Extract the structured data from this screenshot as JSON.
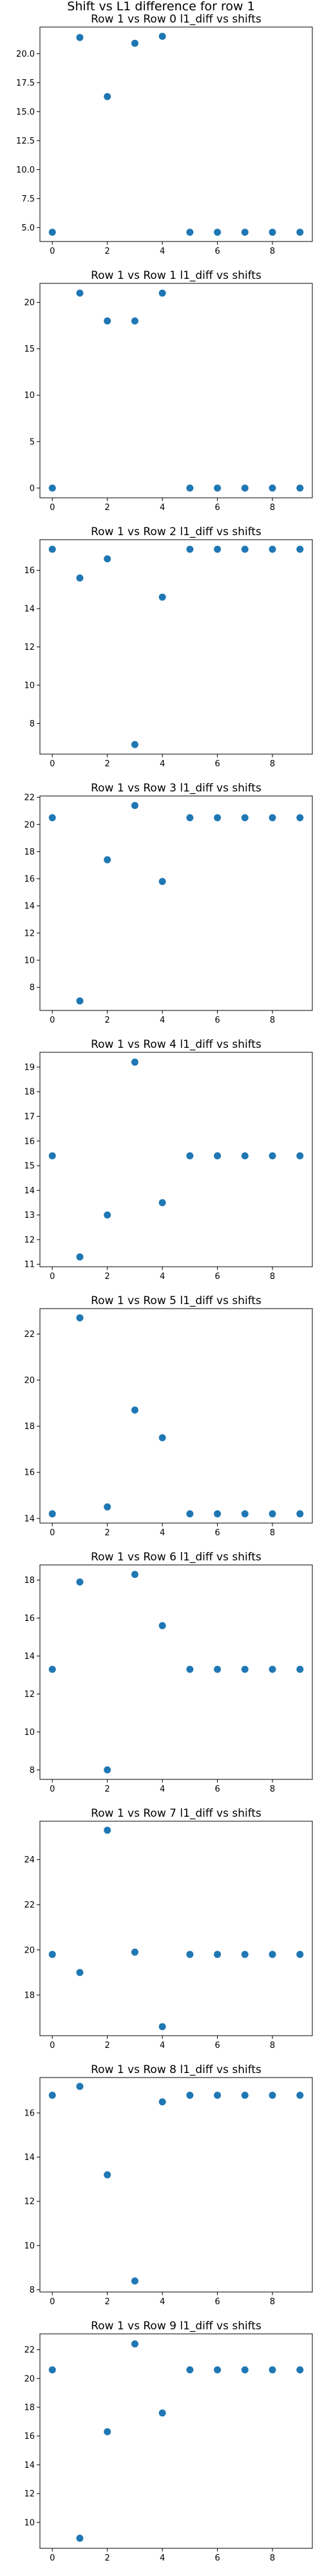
{
  "figure": {
    "suptitle": "Shift vs L1 difference for row 1",
    "marker_color": "#1f77b4"
  },
  "chart_data": [
    {
      "type": "scatter",
      "title": "Row 1 vs Row 0 l1_diff vs shifts",
      "xlabel": "",
      "ylabel": "",
      "x": [
        0,
        1,
        2,
        3,
        4,
        5,
        6,
        7,
        8,
        9
      ],
      "y": [
        4.6,
        21.4,
        16.3,
        20.9,
        21.5,
        4.6,
        4.6,
        4.6,
        4.6,
        4.6
      ],
      "xlim": [
        -0.45,
        9.45
      ],
      "ylim": [
        3.8,
        22.3
      ],
      "xticks": [
        0,
        2,
        4,
        6,
        8
      ],
      "yticks": [
        5.0,
        7.5,
        10.0,
        12.5,
        15.0,
        17.5,
        20.0
      ],
      "ytick_labels": [
        "5.0",
        "7.5",
        "10.0",
        "12.5",
        "15.0",
        "17.5",
        "20.0"
      ],
      "grid": false
    },
    {
      "type": "scatter",
      "title": "Row 1 vs Row 1 l1_diff vs shifts",
      "xlabel": "",
      "ylabel": "",
      "x": [
        0,
        1,
        2,
        3,
        4,
        5,
        6,
        7,
        8,
        9
      ],
      "y": [
        0,
        21,
        18,
        18,
        21,
        0,
        0,
        0,
        0,
        0
      ],
      "xlim": [
        -0.45,
        9.45
      ],
      "ylim": [
        -1.05,
        22.05
      ],
      "xticks": [
        0,
        2,
        4,
        6,
        8
      ],
      "yticks": [
        0,
        5,
        10,
        15,
        20
      ],
      "ytick_labels": [
        "0",
        "5",
        "10",
        "15",
        "20"
      ],
      "grid": false
    },
    {
      "type": "scatter",
      "title": "Row 1 vs Row 2 l1_diff vs shifts",
      "xlabel": "",
      "ylabel": "",
      "x": [
        0,
        1,
        2,
        3,
        4,
        5,
        6,
        7,
        8,
        9
      ],
      "y": [
        17.1,
        15.6,
        16.6,
        6.9,
        14.6,
        17.1,
        17.1,
        17.1,
        17.1,
        17.1
      ],
      "xlim": [
        -0.45,
        9.45
      ],
      "ylim": [
        6.4,
        17.6
      ],
      "xticks": [
        0,
        2,
        4,
        6,
        8
      ],
      "yticks": [
        8,
        10,
        12,
        14,
        16
      ],
      "ytick_labels": [
        "8",
        "10",
        "12",
        "14",
        "16"
      ],
      "grid": false
    },
    {
      "type": "scatter",
      "title": "Row 1 vs Row 3 l1_diff vs shifts",
      "xlabel": "",
      "ylabel": "",
      "x": [
        0,
        1,
        2,
        3,
        4,
        5,
        6,
        7,
        8,
        9
      ],
      "y": [
        20.5,
        7.0,
        17.4,
        21.4,
        15.8,
        20.5,
        20.5,
        20.5,
        20.5,
        20.5
      ],
      "xlim": [
        -0.45,
        9.45
      ],
      "ylim": [
        6.3,
        22.1
      ],
      "xticks": [
        0,
        2,
        4,
        6,
        8
      ],
      "yticks": [
        8,
        10,
        12,
        14,
        16,
        18,
        20,
        22
      ],
      "ytick_labels": [
        "8",
        "10",
        "12",
        "14",
        "16",
        "18",
        "20",
        "22"
      ],
      "grid": false
    },
    {
      "type": "scatter",
      "title": "Row 1 vs Row 4 l1_diff vs shifts",
      "xlabel": "",
      "ylabel": "",
      "x": [
        0,
        1,
        2,
        3,
        4,
        5,
        6,
        7,
        8,
        9
      ],
      "y": [
        15.4,
        11.3,
        13.0,
        19.2,
        13.5,
        15.4,
        15.4,
        15.4,
        15.4,
        15.4
      ],
      "xlim": [
        -0.45,
        9.45
      ],
      "ylim": [
        10.9,
        19.6
      ],
      "xticks": [
        0,
        2,
        4,
        6,
        8
      ],
      "yticks": [
        11,
        12,
        13,
        14,
        15,
        16,
        17,
        18,
        19
      ],
      "ytick_labels": [
        "11",
        "12",
        "13",
        "14",
        "15",
        "16",
        "17",
        "18",
        "19"
      ],
      "grid": false
    },
    {
      "type": "scatter",
      "title": "Row 1 vs Row 5 l1_diff vs shifts",
      "xlabel": "",
      "ylabel": "",
      "x": [
        0,
        1,
        2,
        3,
        4,
        5,
        6,
        7,
        8,
        9
      ],
      "y": [
        14.2,
        22.7,
        14.5,
        18.7,
        17.5,
        14.2,
        14.2,
        14.2,
        14.2,
        14.2
      ],
      "xlim": [
        -0.45,
        9.45
      ],
      "ylim": [
        13.8,
        23.1
      ],
      "xticks": [
        0,
        2,
        4,
        6,
        8
      ],
      "yticks": [
        14,
        16,
        18,
        20,
        22
      ],
      "ytick_labels": [
        "14",
        "16",
        "18",
        "20",
        "22"
      ],
      "grid": false
    },
    {
      "type": "scatter",
      "title": "Row 1 vs Row 6 l1_diff vs shifts",
      "xlabel": "",
      "ylabel": "",
      "x": [
        0,
        1,
        2,
        3,
        4,
        5,
        6,
        7,
        8,
        9
      ],
      "y": [
        13.3,
        17.9,
        8.0,
        18.3,
        15.6,
        13.3,
        13.3,
        13.3,
        13.3,
        13.3
      ],
      "xlim": [
        -0.45,
        9.45
      ],
      "ylim": [
        7.5,
        18.8
      ],
      "xticks": [
        0,
        2,
        4,
        6,
        8
      ],
      "yticks": [
        8,
        10,
        12,
        14,
        16,
        18
      ],
      "ytick_labels": [
        "8",
        "10",
        "12",
        "14",
        "16",
        "18"
      ],
      "grid": false
    },
    {
      "type": "scatter",
      "title": "Row 1 vs Row 7 l1_diff vs shifts",
      "xlabel": "",
      "ylabel": "",
      "x": [
        0,
        1,
        2,
        3,
        4,
        5,
        6,
        7,
        8,
        9
      ],
      "y": [
        19.8,
        19.0,
        25.3,
        19.9,
        16.6,
        19.8,
        19.8,
        19.8,
        19.8,
        19.8
      ],
      "xlim": [
        -0.45,
        9.45
      ],
      "ylim": [
        16.2,
        25.7
      ],
      "xticks": [
        0,
        2,
        4,
        6,
        8
      ],
      "yticks": [
        18,
        20,
        22,
        24
      ],
      "ytick_labels": [
        "18",
        "20",
        "22",
        "24"
      ],
      "grid": false
    },
    {
      "type": "scatter",
      "title": "Row 1 vs Row 8 l1_diff vs shifts",
      "xlabel": "",
      "ylabel": "",
      "x": [
        0,
        1,
        2,
        3,
        4,
        5,
        6,
        7,
        8,
        9
      ],
      "y": [
        16.8,
        17.2,
        13.2,
        8.4,
        16.5,
        16.8,
        16.8,
        16.8,
        16.8,
        16.8
      ],
      "xlim": [
        -0.45,
        9.45
      ],
      "ylim": [
        7.9,
        17.6
      ],
      "xticks": [
        0,
        2,
        4,
        6,
        8
      ],
      "yticks": [
        8,
        10,
        12,
        14,
        16
      ],
      "ytick_labels": [
        "8",
        "10",
        "12",
        "14",
        "16"
      ],
      "grid": false
    },
    {
      "type": "scatter",
      "title": "Row 1 vs Row 9 l1_diff vs shifts",
      "xlabel": "",
      "ylabel": "",
      "x": [
        0,
        1,
        2,
        3,
        4,
        5,
        6,
        7,
        8,
        9
      ],
      "y": [
        20.6,
        8.9,
        16.3,
        22.4,
        17.6,
        20.6,
        20.6,
        20.6,
        20.6,
        20.6
      ],
      "xlim": [
        -0.45,
        9.45
      ],
      "ylim": [
        8.2,
        23.1
      ],
      "xticks": [
        0,
        2,
        4,
        6,
        8
      ],
      "yticks": [
        10,
        12,
        14,
        16,
        18,
        20,
        22
      ],
      "ytick_labels": [
        "10",
        "12",
        "14",
        "16",
        "18",
        "20",
        "22"
      ],
      "grid": false
    }
  ]
}
